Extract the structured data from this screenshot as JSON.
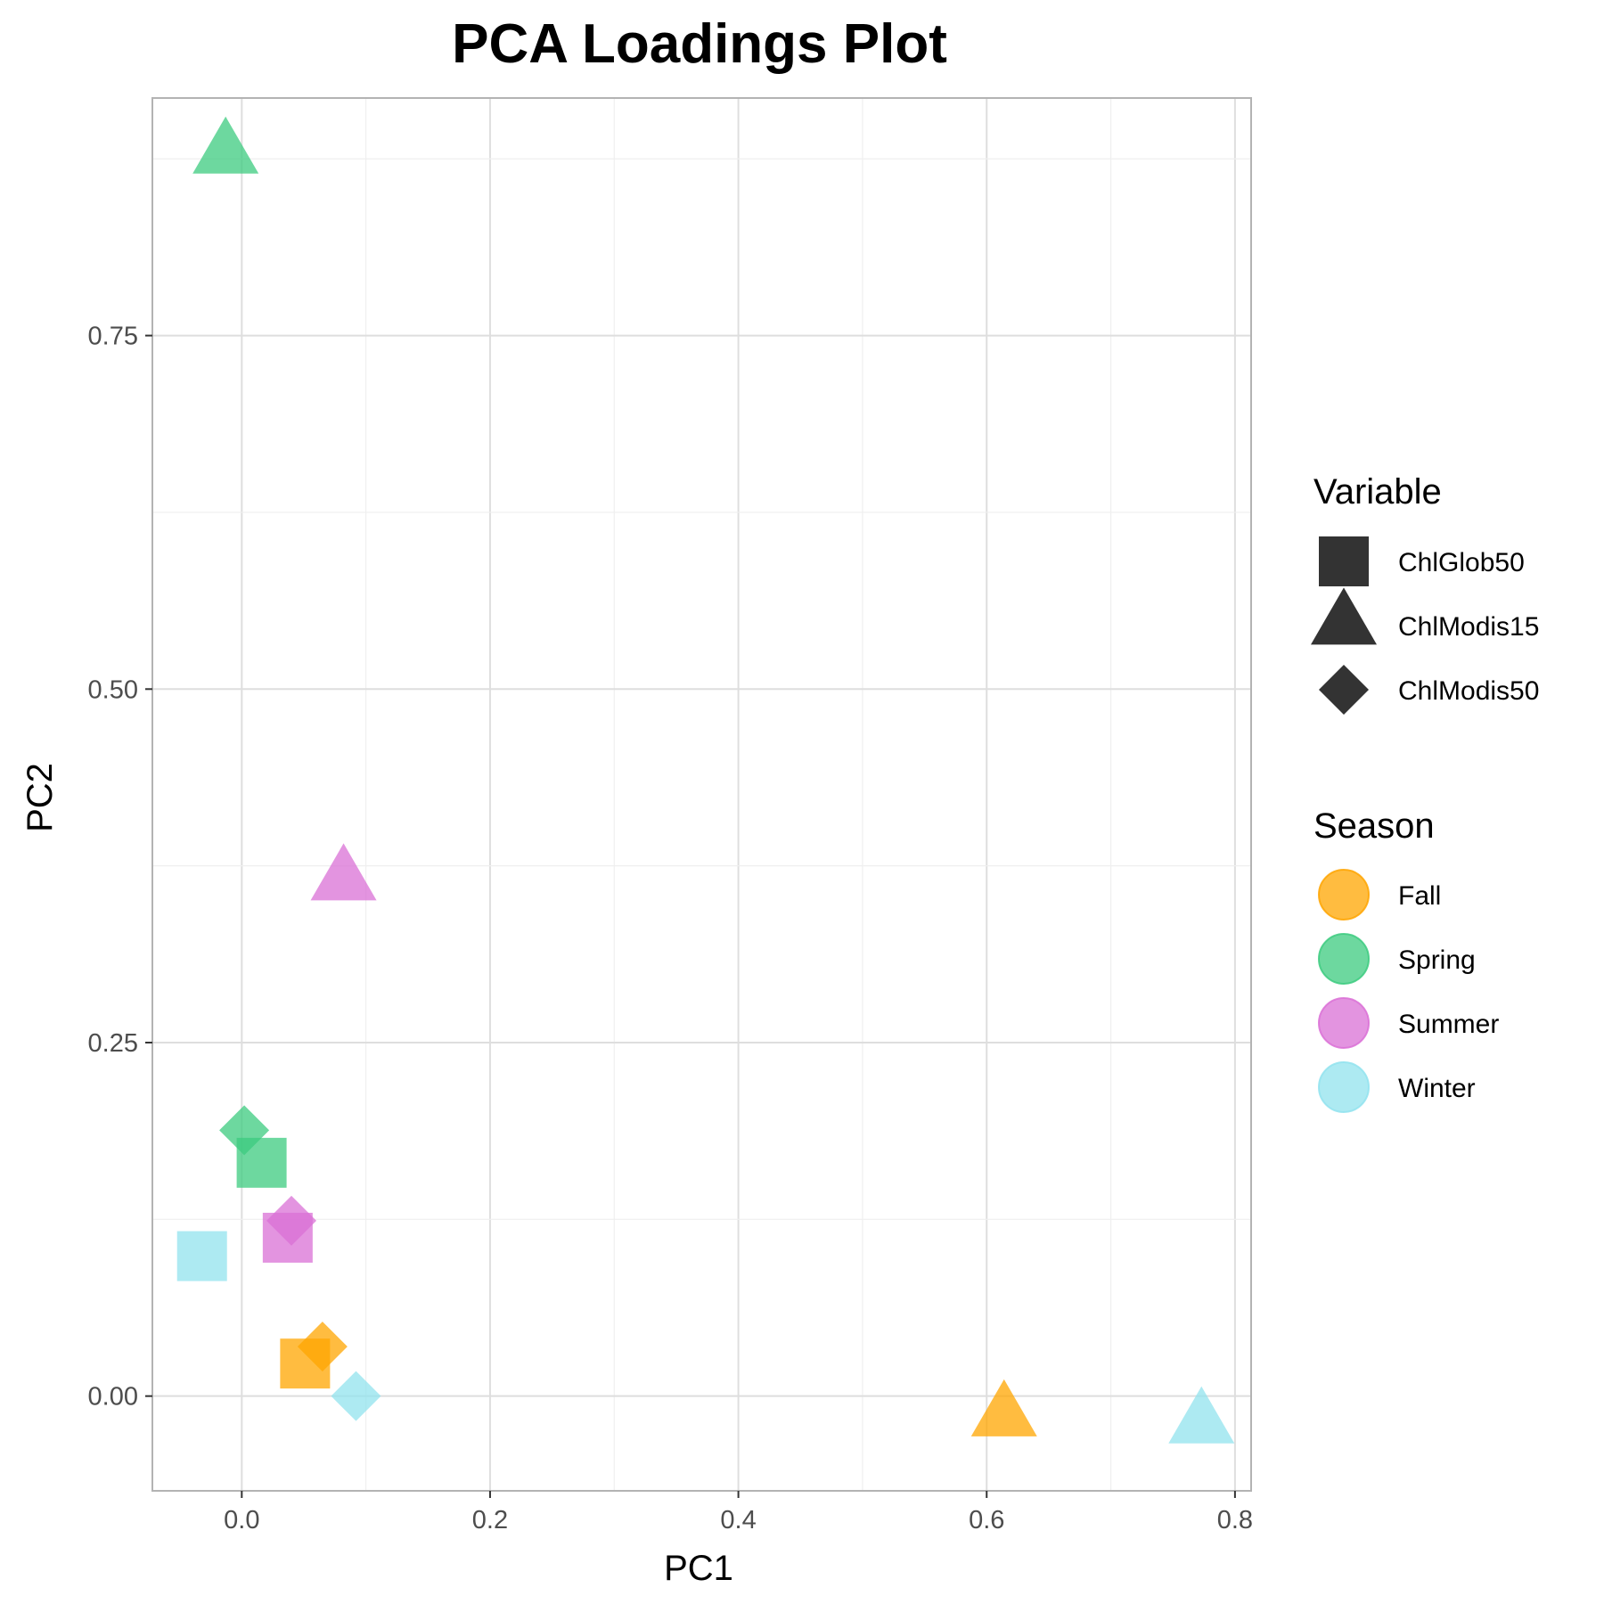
{
  "chart_data": {
    "type": "scatter",
    "title": "PCA Loadings Plot",
    "xlabel": "PC1",
    "ylabel": "PC2",
    "xlim": [
      -0.072,
      0.813
    ],
    "ylim": [
      -0.067,
      0.918
    ],
    "x_ticks": [
      0.0,
      0.2,
      0.4,
      0.6,
      0.8
    ],
    "x_tick_labels": [
      "0.0",
      "0.2",
      "0.4",
      "0.6",
      "0.8"
    ],
    "y_ticks": [
      0.0,
      0.25,
      0.5,
      0.75
    ],
    "y_tick_labels": [
      "0.00",
      "0.25",
      "0.50",
      "0.75"
    ],
    "grid": true,
    "legend_position": "right",
    "legends": {
      "shape": {
        "title": "Variable",
        "items": [
          {
            "label": "ChlGlob50",
            "shape": "square"
          },
          {
            "label": "ChlModis15",
            "shape": "triangle"
          },
          {
            "label": "ChlModis50",
            "shape": "diamond"
          }
        ]
      },
      "color": {
        "title": "Season",
        "items": [
          {
            "label": "Fall",
            "color": "#FFA500"
          },
          {
            "label": "Spring",
            "color": "#3CCB7F"
          },
          {
            "label": "Summer",
            "color": "#DA70D6"
          },
          {
            "label": "Winter",
            "color": "#92E3EE"
          }
        ]
      }
    },
    "points": [
      {
        "variable": "ChlModis15",
        "season": "Spring",
        "x": -0.013,
        "y": 0.878
      },
      {
        "variable": "ChlModis15",
        "season": "Summer",
        "x": 0.082,
        "y": 0.364
      },
      {
        "variable": "ChlModis15",
        "season": "Fall",
        "x": 0.614,
        "y": -0.015
      },
      {
        "variable": "ChlModis15",
        "season": "Winter",
        "x": 0.773,
        "y": -0.02
      },
      {
        "variable": "ChlModis50",
        "season": "Spring",
        "x": 0.002,
        "y": 0.188
      },
      {
        "variable": "ChlGlob50",
        "season": "Spring",
        "x": 0.016,
        "y": 0.165
      },
      {
        "variable": "ChlModis50",
        "season": "Summer",
        "x": 0.04,
        "y": 0.124
      },
      {
        "variable": "ChlGlob50",
        "season": "Summer",
        "x": 0.037,
        "y": 0.112
      },
      {
        "variable": "ChlGlob50",
        "season": "Winter",
        "x": -0.032,
        "y": 0.099
      },
      {
        "variable": "ChlModis50",
        "season": "Fall",
        "x": 0.065,
        "y": 0.035
      },
      {
        "variable": "ChlGlob50",
        "season": "Fall",
        "x": 0.051,
        "y": 0.023
      },
      {
        "variable": "ChlModis50",
        "season": "Winter",
        "x": 0.092,
        "y": 0.0
      }
    ]
  }
}
